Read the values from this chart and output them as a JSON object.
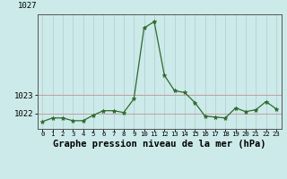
{
  "x": [
    0,
    1,
    2,
    3,
    4,
    5,
    6,
    7,
    8,
    9,
    10,
    11,
    12,
    13,
    14,
    15,
    16,
    17,
    18,
    19,
    20,
    21,
    22,
    23
  ],
  "y": [
    1021.55,
    1021.75,
    1021.75,
    1021.6,
    1021.6,
    1021.9,
    1022.15,
    1022.15,
    1022.05,
    1022.8,
    1026.7,
    1027.05,
    1024.1,
    1023.25,
    1023.15,
    1022.6,
    1021.85,
    1021.8,
    1021.75,
    1022.3,
    1022.1,
    1022.2,
    1022.65,
    1022.25
  ],
  "line_color": "#2d6a2d",
  "marker": "*",
  "bg_color": "#cceaea",
  "grid_color_h": "#c0a0a0",
  "grid_color_v": "#b8d4d4",
  "xlabel": "Graphe pression niveau de la mer (hPa)",
  "xlabel_fontsize": 7.5,
  "ytick_label_1027": "1027",
  "ytick_label_1023": "1023",
  "ytick_label_1022": "1022",
  "ytick_values": [
    1022.0,
    1023.0
  ],
  "ylim_bottom": 1021.15,
  "ylim_top": 1027.45,
  "xlim": [
    -0.5,
    23.5
  ],
  "xtick_labels": [
    "0",
    "1",
    "2",
    "3",
    "4",
    "5",
    "6",
    "7",
    "8",
    "9",
    "10",
    "11",
    "12",
    "13",
    "14",
    "15",
    "16",
    "17",
    "18",
    "19",
    "20",
    "21",
    "22",
    "23"
  ]
}
